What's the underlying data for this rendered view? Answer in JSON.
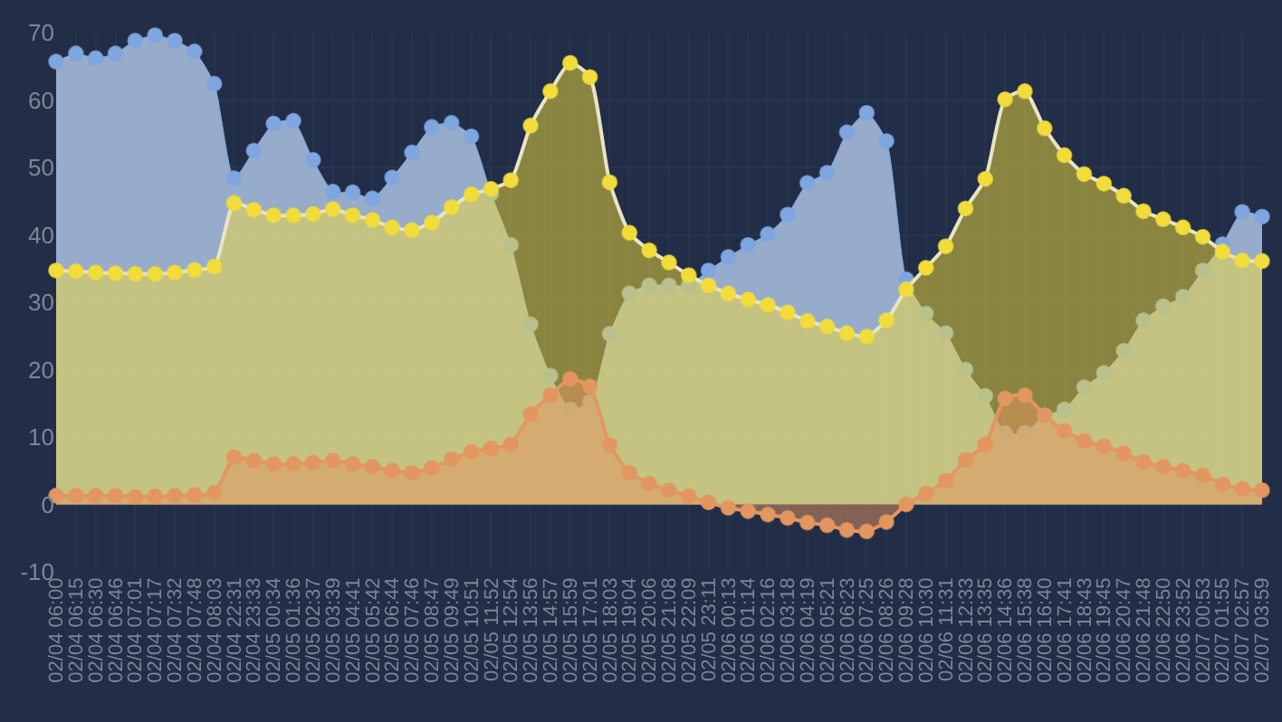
{
  "chart_data": {
    "type": "area",
    "categories": [
      "02/04 06:00",
      "02/04 06:15",
      "02/04 06:30",
      "02/04 06:46",
      "02/04 07:01",
      "02/04 07:17",
      "02/04 07:32",
      "02/04 07:48",
      "02/04 08:03",
      "02/04 22:31",
      "02/04 23:33",
      "02/05 00:34",
      "02/05 01:36",
      "02/05 02:37",
      "02/05 03:39",
      "02/05 04:41",
      "02/05 05:42",
      "02/05 06:44",
      "02/05 07:46",
      "02/05 08:47",
      "02/05 09:49",
      "02/05 10:51",
      "02/05 11:52",
      "02/05 12:54",
      "02/05 13:56",
      "02/05 14:57",
      "02/05 15:59",
      "02/05 17:01",
      "02/05 18:03",
      "02/05 19:04",
      "02/05 20:06",
      "02/05 21:08",
      "02/05 22:09",
      "02/05 23:11",
      "02/06 00:13",
      "02/06 01:14",
      "02/06 02:16",
      "02/06 03:18",
      "02/06 04:19",
      "02/06 05:21",
      "02/06 06:23",
      "02/06 07:25",
      "02/06 08:26",
      "02/06 09:28",
      "02/06 10:30",
      "02/06 11:31",
      "02/06 12:33",
      "02/06 13:35",
      "02/06 14:36",
      "02/06 15:38",
      "02/06 16:40",
      "02/06 17:41",
      "02/06 18:43",
      "02/06 19:45",
      "02/06 20:47",
      "02/06 21:48",
      "02/06 22:50",
      "02/06 23:52",
      "02/07 00:53",
      "02/07 01:55",
      "02/07 02:57",
      "02/07 03:59"
    ],
    "series": [
      {
        "color": "#7ea6e0",
        "values": [
          65.7,
          66.9,
          66.2,
          66.9,
          68.8,
          69.6,
          68.8,
          67.2,
          62.4,
          48.4,
          52.5,
          56.5,
          56.9,
          51.1,
          46.4,
          46.3,
          45.4,
          48.5,
          52.2,
          56.0,
          56.6,
          54.6,
          46.1,
          38.5,
          26.7,
          19.1,
          14.1,
          15.2,
          25.3,
          31.3,
          32.5,
          32.5,
          32.5,
          34.7,
          36.7,
          38.5,
          40.1,
          43.0,
          47.7,
          49.2,
          55.2,
          58.1,
          53.9,
          33.4,
          28.3,
          25.4,
          20.0,
          16.1,
          10.6,
          10.6,
          13.2,
          14.1,
          17.4,
          19.5,
          22.8,
          27.3,
          29.4,
          30.8,
          34.7,
          38.6,
          43.4,
          42.7
        ]
      },
      {
        "color": "#f2dc3a",
        "values": [
          34.7,
          34.6,
          34.4,
          34.3,
          34.2,
          34.2,
          34.4,
          34.8,
          35.3,
          44.7,
          43.7,
          42.9,
          42.9,
          43.1,
          43.8,
          42.9,
          42.2,
          41.1,
          40.7,
          41.8,
          44.1,
          46.0,
          46.8,
          48.1,
          56.2,
          61.3,
          65.5,
          63.4,
          47.8,
          40.3,
          37.7,
          35.9,
          34.0,
          32.5,
          31.3,
          30.4,
          29.6,
          28.5,
          27.2,
          26.4,
          25.4,
          24.9,
          27.3,
          31.9,
          35.1,
          38.3,
          43.9,
          48.3,
          60.1,
          61.3,
          55.8,
          51.8,
          49.0,
          47.6,
          45.8,
          43.5,
          42.3,
          41.1,
          39.7,
          37.5,
          36.2,
          36.1
        ]
      },
      {
        "color": "#e39660",
        "values": [
          1.3,
          1.3,
          1.3,
          1.3,
          1.1,
          1.2,
          1.3,
          1.4,
          1.7,
          7.0,
          6.5,
          6.0,
          6.0,
          6.2,
          6.5,
          6.0,
          5.6,
          5.0,
          4.7,
          5.4,
          6.7,
          7.8,
          8.3,
          8.9,
          13.4,
          16.2,
          18.6,
          17.5,
          8.8,
          4.7,
          3.1,
          2.1,
          1.2,
          0.3,
          -0.5,
          -1.0,
          -1.5,
          -2.0,
          -2.7,
          -3.1,
          -3.8,
          -4.0,
          -2.6,
          0.0,
          1.6,
          3.5,
          6.6,
          8.9,
          15.7,
          16.2,
          13.2,
          10.9,
          9.4,
          8.6,
          7.6,
          6.3,
          5.6,
          5.0,
          4.3,
          3.0,
          2.3,
          2.1
        ]
      }
    ],
    "ylim": [
      -10,
      70
    ],
    "yticks": [
      -10,
      0,
      10,
      20,
      30,
      40,
      50,
      60,
      70
    ],
    "grid": true,
    "marker": "circle",
    "line_style": "solid"
  }
}
